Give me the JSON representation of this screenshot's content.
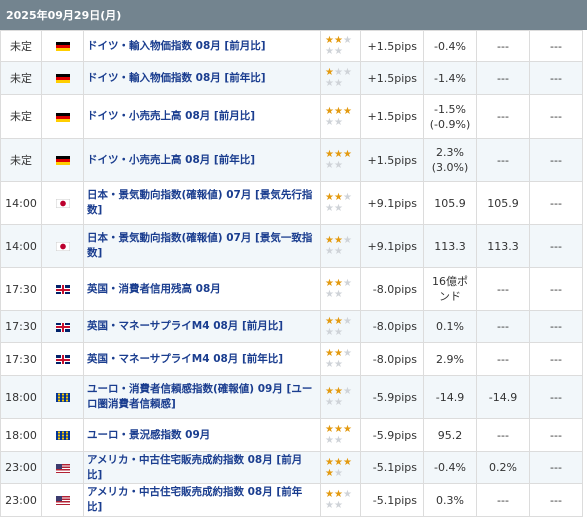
{
  "date_header": "2025年09月29日(月)",
  "rows": [
    {
      "time": "未定",
      "flag": "de",
      "flag_icon": "germany-flag-icon",
      "name": "ドイツ・輸入物価指数 08月 [前月比]",
      "stars_on": 2,
      "stars_off": 3,
      "pips": "+1.5pips",
      "prev": "-0.4%",
      "forecast": "---",
      "result": "---",
      "h": 31
    },
    {
      "time": "未定",
      "flag": "de",
      "flag_icon": "germany-flag-icon",
      "name": "ドイツ・輸入物価指数 08月 [前年比]",
      "stars_on": 1,
      "stars_off": 4,
      "pips": "+1.5pips",
      "prev": "-1.4%",
      "forecast": "---",
      "result": "---",
      "h": 33
    },
    {
      "time": "未定",
      "flag": "de",
      "flag_icon": "germany-flag-icon",
      "name": "ドイツ・小売売上高 08月 [前月比]",
      "stars_on": 3,
      "stars_off": 2,
      "pips": "+1.5pips",
      "prev": "-1.5%\n(-0.9%)",
      "forecast": "---",
      "result": "---",
      "h": 44
    },
    {
      "time": "未定",
      "flag": "de",
      "flag_icon": "germany-flag-icon",
      "name": "ドイツ・小売売上高 08月 [前年比]",
      "stars_on": 3,
      "stars_off": 2,
      "pips": "+1.5pips",
      "prev": "2.3%\n(3.0%)",
      "forecast": "---",
      "result": "---",
      "h": 43
    },
    {
      "time": "14:00",
      "flag": "jp",
      "flag_icon": "japan-flag-icon",
      "name": "日本・景気動向指数(確報値) 07月 [景気先行指数]",
      "stars_on": 2,
      "stars_off": 3,
      "pips": "+9.1pips",
      "prev": "105.9",
      "forecast": "105.9",
      "result": "---",
      "h": 43
    },
    {
      "time": "14:00",
      "flag": "jp",
      "flag_icon": "japan-flag-icon",
      "name": "日本・景気動向指数(確報値) 07月 [景気一致指数]",
      "stars_on": 2,
      "stars_off": 3,
      "pips": "+9.1pips",
      "prev": "113.3",
      "forecast": "113.3",
      "result": "---",
      "h": 43
    },
    {
      "time": "17:30",
      "flag": "uk",
      "flag_icon": "uk-flag-icon",
      "name": "英国・消費者信用残高 08月",
      "stars_on": 2,
      "stars_off": 3,
      "pips": "-8.0pips",
      "prev": "16億ポンド",
      "forecast": "---",
      "result": "---",
      "h": 43
    },
    {
      "time": "17:30",
      "flag": "uk",
      "flag_icon": "uk-flag-icon",
      "name": "英国・マネーサプライM4 08月 [前月比]",
      "stars_on": 2,
      "stars_off": 3,
      "pips": "-8.0pips",
      "prev": "0.1%",
      "forecast": "---",
      "result": "---",
      "h": 32
    },
    {
      "time": "17:30",
      "flag": "uk",
      "flag_icon": "uk-flag-icon",
      "name": "英国・マネーサプライM4 08月 [前年比]",
      "stars_on": 2,
      "stars_off": 3,
      "pips": "-8.0pips",
      "prev": "2.9%",
      "forecast": "---",
      "result": "---",
      "h": 33
    },
    {
      "time": "18:00",
      "flag": "eu",
      "flag_icon": "eu-flag-icon",
      "name": "ユーロ・消費者信頼感指数(確報値) 09月 [ユーロ圏消費者信頼感]",
      "stars_on": 2,
      "stars_off": 3,
      "pips": "-5.9pips",
      "prev": "-14.9",
      "forecast": "-14.9",
      "result": "---",
      "h": 43
    },
    {
      "time": "18:00",
      "flag": "eu",
      "flag_icon": "eu-flag-icon",
      "name": "ユーロ・景況感指数 09月",
      "stars_on": 3,
      "stars_off": 2,
      "pips": "-5.9pips",
      "prev": "95.2",
      "forecast": "---",
      "result": "---",
      "h": 33
    },
    {
      "time": "23:00",
      "flag": "us",
      "flag_icon": "usa-flag-icon",
      "name": "アメリカ・中古住宅販売成約指数 08月 [前月比]",
      "stars_on": 4,
      "stars_off": 1,
      "pips": "-5.1pips",
      "prev": "-0.4%",
      "forecast": "0.2%",
      "result": "---",
      "h": 32
    },
    {
      "time": "23:00",
      "flag": "us",
      "flag_icon": "usa-flag-icon",
      "name": "アメリカ・中古住宅販売成約指数 08月 [前年比]",
      "stars_on": 2,
      "stars_off": 3,
      "pips": "-5.1pips",
      "prev": "0.3%",
      "forecast": "---",
      "result": "---",
      "h": 33
    }
  ],
  "colors": {
    "header_bg": "#73848f",
    "name_text": "#1a3d8f",
    "star_on": "#e39a10",
    "star_off": "#cfd3d8",
    "row_alt": "#f2f7fa"
  }
}
